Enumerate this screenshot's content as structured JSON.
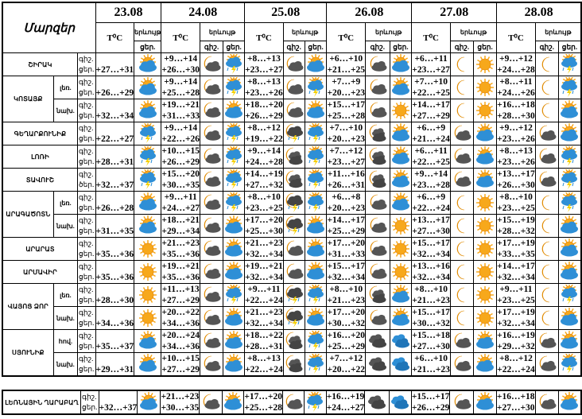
{
  "header": {
    "regions_label": "Մարզեր",
    "temp_label": "T⁰C",
    "phenomenon_label": "երևույթ",
    "night_label": "գիշ.",
    "day_label": "ցեր.",
    "dates": [
      "23.08",
      "24.08",
      "25.08",
      "26.08",
      "27.08",
      "28.08"
    ]
  },
  "icons": {
    "sun": "sun-icon",
    "partly": "sun-behind-cloud-icon",
    "storm": "thunderstorm-icon",
    "moon": "moon-icon",
    "mc": "moon-cloud-icon",
    "moonclouds": "moon-dark-clouds-icon",
    "moonstorm": "moon-thunderstorm-icon",
    "clouds": "dark-clouds-icon",
    "blue": "blue-clouds-icon"
  },
  "colors": {
    "sun": "#f7a81b",
    "moon": "#f4b400",
    "cloud_gray": "#555555",
    "cloud_blue": "#2e8fd6"
  },
  "regions": [
    {
      "name": "ՇԻՐԱԿ",
      "subs": [
        {
          "label": "",
          "nl": "գիշ.",
          "dl": "ցեր.",
          "t23": "+27…+31",
          "i23": "partly",
          "days": [
            {
              "n": "+9…+14",
              "d": "+26…+30",
              "ni": "mc",
              "di": "storm"
            },
            {
              "n": "+8…+13",
              "d": "+23…+27",
              "ni": "mc",
              "di": "partly"
            },
            {
              "n": "+6…+10",
              "d": "+21…+25",
              "ni": "mc",
              "di": "partly"
            },
            {
              "n": "+6…+11",
              "d": "+23…+27",
              "ni": "moon",
              "di": "sun"
            },
            {
              "n": "+9…+12",
              "d": "+24…+28",
              "ni": "moon",
              "di": "storm"
            }
          ]
        }
      ]
    },
    {
      "name": "ԿՈՏԱՅՔ",
      "subs": [
        {
          "label": "լեռ.",
          "nl": "գիշ.",
          "dl": "ցեր.",
          "t23": "+26…+29",
          "i23": "partly",
          "days": [
            {
              "n": "+9…+14",
              "d": "+25…+28",
              "ni": "mc",
              "di": "storm"
            },
            {
              "n": "+8…+13",
              "d": "+23…+26",
              "ni": "mc",
              "di": "storm"
            },
            {
              "n": "+7…+9",
              "d": "+20…+23",
              "ni": "mc",
              "di": "partly"
            },
            {
              "n": "+7…+10",
              "d": "+22…+25",
              "ni": "moon",
              "di": "sun"
            },
            {
              "n": "+8…+11",
              "d": "+24…+26",
              "ni": "moon",
              "di": "storm"
            }
          ]
        },
        {
          "label": "նախ.",
          "nl": "գիշ.",
          "dl": "ցեր.",
          "t23": "+32…+34",
          "i23": "partly",
          "days": [
            {
              "n": "+19…+21",
              "d": "+31…+33",
              "ni": "mc",
              "di": "partly"
            },
            {
              "n": "+18…+20",
              "d": "+26…+29",
              "ni": "mc",
              "di": "partly"
            },
            {
              "n": "+15…+17",
              "d": "+25…+28",
              "ni": "mc",
              "di": "sun"
            },
            {
              "n": "+14…+17",
              "d": "+27…+29",
              "ni": "moon",
              "di": "sun"
            },
            {
              "n": "+16…+18",
              "d": "+28…+30",
              "ni": "moon",
              "di": "partly"
            }
          ]
        }
      ]
    },
    {
      "name": "ԳԵՂԱՐՔՈՒՆԻՔ",
      "subs": [
        {
          "label": "",
          "nl": "գիշ.",
          "dl": "ցեր.",
          "t23": "+22…+27",
          "i23": "storm",
          "days": [
            {
              "n": "+9…+14",
              "d": "+22…+26",
              "ni": "mc",
              "di": "storm"
            },
            {
              "n": "+8…+12",
              "d": "+19…+22",
              "ni": "moonstorm",
              "di": "storm"
            },
            {
              "n": "+7…+10",
              "d": "+20…+23",
              "ni": "moonclouds",
              "di": "partly"
            },
            {
              "n": "+6…+9",
              "d": "+21…+24",
              "ni": "mc",
              "di": "partly"
            },
            {
              "n": "+9…+12",
              "d": "+23…+26",
              "ni": "mc",
              "di": "partly"
            }
          ]
        }
      ]
    },
    {
      "name": "ԼՈՌԻ",
      "subs": [
        {
          "label": "",
          "nl": "գիշ.",
          "dl": "ցեր.",
          "t23": "+28…+31",
          "i23": "storm",
          "days": [
            {
              "n": "+10…+15",
              "d": "+26…+29",
              "ni": "mc",
              "di": "storm"
            },
            {
              "n": "+9…+14",
              "d": "+24…+28",
              "ni": "moonclouds",
              "di": "storm"
            },
            {
              "n": "+7…+12",
              "d": "+23…+27",
              "ni": "moonclouds",
              "di": "partly"
            },
            {
              "n": "+6…+11",
              "d": "+22…+25",
              "ni": "mc",
              "di": "partly"
            },
            {
              "n": "+8…+13",
              "d": "+23…+26",
              "ni": "mc",
              "di": "storm"
            }
          ]
        }
      ]
    },
    {
      "name": "ՏԱՎՈՒՇ",
      "subs": [
        {
          "label": "",
          "nl": "գիշ.",
          "dl": "ծեր.",
          "t23": "+32…+37",
          "i23": "storm",
          "days": [
            {
              "n": "+15…+20",
              "d": "+30…+35",
              "ni": "mc",
              "di": "storm"
            },
            {
              "n": "+14…+19",
              "d": "+27…+32",
              "ni": "moonclouds",
              "di": "storm"
            },
            {
              "n": "+11…+16",
              "d": "+26…+31",
              "ni": "moonclouds",
              "di": "partly"
            },
            {
              "n": "+9…+14",
              "d": "+23…+28",
              "ni": "mc",
              "di": "partly"
            },
            {
              "n": "+13…+17",
              "d": "+26…+30",
              "ni": "mc",
              "di": "storm"
            }
          ]
        }
      ]
    },
    {
      "name": "ԱՐԱԳԱԾՈՏՆ",
      "subs": [
        {
          "label": "լեռ.",
          "nl": "գիշ.",
          "dl": "ցեր.",
          "t23": "+26…+28",
          "i23": "partly",
          "days": [
            {
              "n": "+9…+11",
              "d": "+24…+27",
              "ni": "mc",
              "di": "storm"
            },
            {
              "n": "+8…+10",
              "d": "+23…+25",
              "ni": "moonstorm",
              "di": "storm"
            },
            {
              "n": "+6…+8",
              "d": "+20…+23",
              "ni": "mc",
              "di": "partly"
            },
            {
              "n": "+6…+9",
              "d": "+22…+24",
              "ni": "moon",
              "di": "sun"
            },
            {
              "n": "+8…+10",
              "d": "+23…+25",
              "ni": "moon",
              "di": "storm"
            }
          ]
        },
        {
          "label": "նախ.",
          "nl": "գիշ.",
          "dl": "ցեր.",
          "t23": "+31…+35",
          "i23": "partly",
          "days": [
            {
              "n": "+18…+21",
              "d": "+29…+34",
              "ni": "mc",
              "di": "partly"
            },
            {
              "n": "+17…+20",
              "d": "+25…+30",
              "ni": "moonstorm",
              "di": "partly"
            },
            {
              "n": "+14…+17",
              "d": "+25…+29",
              "ni": "mc",
              "di": "sun"
            },
            {
              "n": "+13…+17",
              "d": "+27…+30",
              "ni": "moon",
              "di": "sun"
            },
            {
              "n": "+15…+19",
              "d": "+28…+32",
              "ni": "moon",
              "di": "partly"
            }
          ]
        }
      ]
    },
    {
      "name": "ԱՐԱՐԱՏ",
      "subs": [
        {
          "label": "",
          "nl": "գիշ.",
          "dl": "ցեր.",
          "t23": "+35…+36",
          "i23": "sun",
          "days": [
            {
              "n": "+21…+23",
              "d": "+35…+36",
              "ni": "mc",
              "di": "partly"
            },
            {
              "n": "+21…+23",
              "d": "+32…+34",
              "ni": "mc",
              "di": "partly"
            },
            {
              "n": "+17…+20",
              "d": "+31…+33",
              "ni": "mc",
              "di": "sun"
            },
            {
              "n": "+15…+17",
              "d": "+32…+34",
              "ni": "moon",
              "di": "sun"
            },
            {
              "n": "+17…+19",
              "d": "+33…+35",
              "ni": "moon",
              "di": "partly"
            }
          ]
        }
      ]
    },
    {
      "name": "ԱՐՄԱՎԻՐ",
      "subs": [
        {
          "label": "",
          "nl": "գիշ.",
          "dl": "ցեր.",
          "t23": "+35…+36",
          "i23": "sun",
          "days": [
            {
              "n": "+19…+21",
              "d": "+35…+36",
              "ni": "mc",
              "di": "partly"
            },
            {
              "n": "+19…+21",
              "d": "+32…+34",
              "ni": "mc",
              "di": "partly"
            },
            {
              "n": "+15…+17",
              "d": "+32…+34",
              "ni": "mc",
              "di": "sun"
            },
            {
              "n": "+13…+16",
              "d": "+32…+34",
              "ni": "moon",
              "di": "sun"
            },
            {
              "n": "+14…+17",
              "d": "+32…+34",
              "ni": "moon",
              "di": "partly"
            }
          ]
        }
      ]
    },
    {
      "name": "ՎԱՅՈՑ ՁՈՐ",
      "subs": [
        {
          "label": "լեռ.",
          "nl": "գիշ.",
          "dl": "ցեր.",
          "t23": "+28…+30",
          "i23": "sun",
          "days": [
            {
              "n": "+11…+13",
              "d": "+27…+29",
              "ni": "mc",
              "di": "storm"
            },
            {
              "n": "+9…+11",
              "d": "+22…+24",
              "ni": "moonstorm",
              "di": "storm"
            },
            {
              "n": "+8…+10",
              "d": "+21…+23",
              "ni": "moonclouds",
              "di": "partly"
            },
            {
              "n": "+8…+10",
              "d": "+21…+23",
              "ni": "moon",
              "di": "sun"
            },
            {
              "n": "+9…+11",
              "d": "+23…+25",
              "ni": "moon",
              "di": "storm"
            }
          ]
        },
        {
          "label": "նախ.",
          "nl": "գիշ.",
          "dl": "ցեր.",
          "t23": "+34…+36",
          "i23": "sun",
          "days": [
            {
              "n": "+20…+22",
              "d": "+34…+36",
              "ni": "mc",
              "di": "partly"
            },
            {
              "n": "+21…+23",
              "d": "+32…+34",
              "ni": "moonstorm",
              "di": "partly"
            },
            {
              "n": "+17…+20",
              "d": "+30…+32",
              "ni": "mc",
              "di": "partly"
            },
            {
              "n": "+15…+17",
              "d": "+30…+32",
              "ni": "moon",
              "di": "sun"
            },
            {
              "n": "+17…+19",
              "d": "+32…+34",
              "ni": "moon",
              "di": "partly"
            }
          ]
        }
      ]
    },
    {
      "name": "ՍՅՈՒՆԻՔ",
      "subs": [
        {
          "label": "հով.",
          "nl": "գիշ.",
          "dl": "ցեր.",
          "t23": "+35…+37",
          "i23": "partly",
          "days": [
            {
              "n": "+20…+24",
              "d": "+34…+36",
              "ni": "mc",
              "di": "partly"
            },
            {
              "n": "+18…+22",
              "d": "+28…+31",
              "ni": "moonclouds",
              "di": "storm"
            },
            {
              "n": "+16…+20",
              "d": "+25…+29",
              "ni": "clouds",
              "di": "blue"
            },
            {
              "n": "+15…+18",
              "d": "+27…+30",
              "ni": "mc",
              "di": "partly"
            },
            {
              "n": "+16…+19",
              "d": "+29…+32",
              "ni": "mc",
              "di": "partly"
            }
          ]
        },
        {
          "label": "նախ.",
          "nl": "գիշ.",
          "dl": "ցեր.",
          "t23": "+29…+31",
          "i23": "partly",
          "days": [
            {
              "n": "+10…+15",
              "d": "+27…+29",
              "ni": "mc",
              "di": "partly"
            },
            {
              "n": "+8…+13",
              "d": "+22…+24",
              "ni": "moonclouds",
              "di": "storm"
            },
            {
              "n": "+7…+12",
              "d": "+20…+22",
              "ni": "clouds",
              "di": "blue"
            },
            {
              "n": "+6…+10",
              "d": "+21…+23",
              "ni": "mc",
              "di": "partly"
            },
            {
              "n": "+8…+12",
              "d": "+22…+24",
              "ni": "mc",
              "di": "storm"
            }
          ]
        }
      ]
    }
  ],
  "karabakh": {
    "name": "ԼԵՌՆԱՅԻՆ ՂԱՐԱԲԱՂ",
    "subs": [
      {
        "label": "",
        "nl": "գիշ.",
        "dl": "ցեր.",
        "t23": "+32…+37",
        "i23": "partly",
        "days": [
          {
            "n": "+21…+23",
            "d": "+30…+35",
            "ni": "mc",
            "di": "partly"
          },
          {
            "n": "+17…+20",
            "d": "+25…+28",
            "ni": "mc",
            "di": "storm"
          },
          {
            "n": "+16…+19",
            "d": "+24…+27",
            "ni": "clouds",
            "di": "blue"
          },
          {
            "n": "+15…+17",
            "d": "+26…+29",
            "ni": "mc",
            "di": "partly"
          },
          {
            "n": "+16…+18",
            "d": "+27…+30",
            "ni": "mc",
            "di": "partly"
          }
        ]
      }
    ]
  }
}
